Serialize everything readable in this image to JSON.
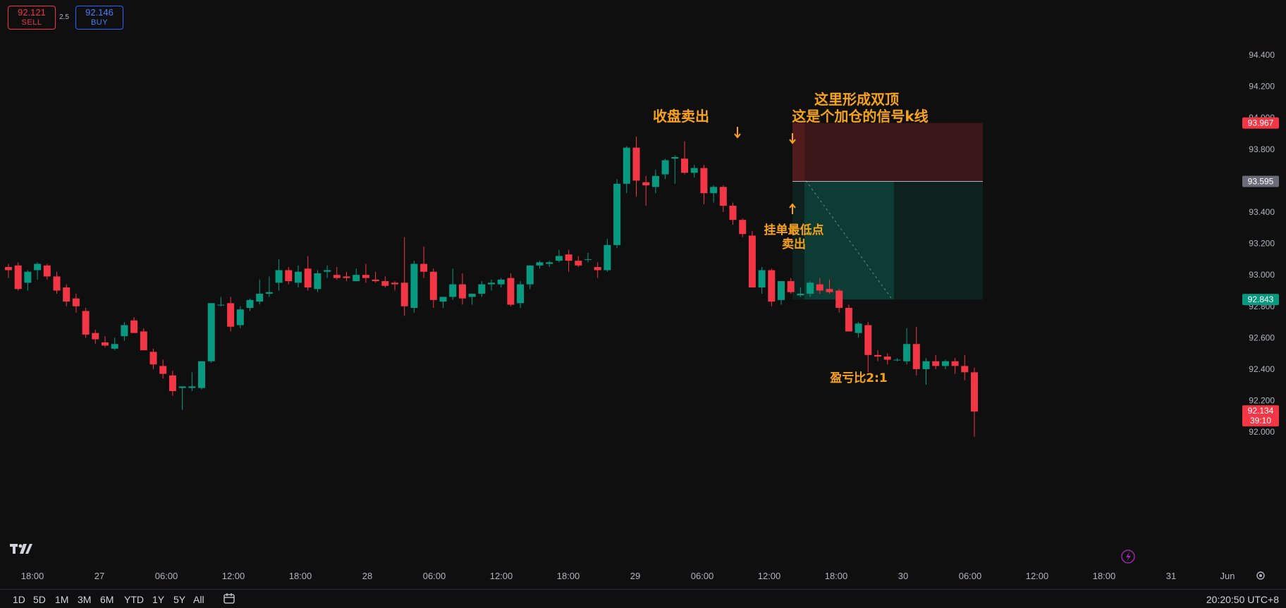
{
  "trade": {
    "sell_price": "92.121",
    "sell_label": "SELL",
    "spread": "2.5",
    "buy_price": "92.146",
    "buy_label": "BUY"
  },
  "annotations": {
    "close_sell": "收盘卖出",
    "double_top_line1": "这里形成双顶",
    "double_top_line2": "这是个加仓的信号k线",
    "pending_order_line1": "挂单最低点",
    "pending_order_line2": "卖出",
    "risk_reward": "盈亏比2:1"
  },
  "price_labels": {
    "stop": "93.967",
    "entry": "93.595",
    "target": "92.843",
    "last_price": "92.134",
    "countdown": "39:10"
  },
  "ranges": [
    "1D",
    "5D",
    "1M",
    "3M",
    "6M",
    "YTD",
    "1Y",
    "5Y",
    "All"
  ],
  "clock": "20:20:50 UTC+8",
  "colors": {
    "up": "#089981",
    "down": "#f23645",
    "annotation": "#f7a21b",
    "background": "#0f0f0f"
  },
  "chart_data": {
    "type": "candlestick",
    "ylim": [
      91.7,
      94.75
    ],
    "yticks": [
      "94.400",
      "94.200",
      "94.000",
      "93.800",
      "93.600",
      "93.400",
      "93.200",
      "93.000",
      "92.800",
      "92.600",
      "92.400",
      "92.200",
      "92.000"
    ],
    "xticks": [
      "18:00",
      "27",
      "06:00",
      "12:00",
      "18:00",
      "28",
      "06:00",
      "12:00",
      "18:00",
      "29",
      "06:00",
      "12:00",
      "18:00",
      "30",
      "06:00",
      "12:00",
      "18:00",
      "31",
      "Jun"
    ],
    "candles": [
      [
        93.05,
        93.07,
        92.98,
        93.03
      ],
      [
        93.06,
        93.08,
        92.9,
        92.91
      ],
      [
        92.95,
        93.03,
        92.9,
        93.02
      ],
      [
        93.03,
        93.08,
        92.97,
        93.07
      ],
      [
        93.06,
        93.07,
        92.97,
        92.99
      ],
      [
        92.99,
        93.02,
        92.88,
        92.9
      ],
      [
        92.92,
        92.94,
        92.8,
        92.83
      ],
      [
        92.85,
        92.88,
        92.76,
        92.8
      ],
      [
        92.77,
        92.79,
        92.6,
        92.62
      ],
      [
        92.63,
        92.65,
        92.56,
        92.59
      ],
      [
        92.57,
        92.61,
        92.54,
        92.55
      ],
      [
        92.53,
        92.6,
        92.52,
        92.56
      ],
      [
        92.61,
        92.7,
        92.58,
        92.68
      ],
      [
        92.71,
        92.73,
        92.63,
        92.63
      ],
      [
        92.64,
        92.66,
        92.52,
        92.52
      ],
      [
        92.51,
        92.53,
        92.4,
        92.43
      ],
      [
        92.42,
        92.46,
        92.34,
        92.37
      ],
      [
        92.36,
        92.39,
        92.23,
        92.26
      ],
      [
        92.28,
        92.29,
        92.14,
        92.29
      ],
      [
        92.28,
        92.38,
        92.26,
        92.29
      ],
      [
        92.28,
        92.44,
        92.27,
        92.45
      ],
      [
        92.45,
        92.82,
        92.44,
        92.82
      ],
      [
        92.81,
        92.86,
        92.8,
        92.81
      ],
      [
        92.82,
        92.86,
        92.64,
        92.67
      ],
      [
        92.68,
        92.8,
        92.66,
        92.78
      ],
      [
        92.79,
        92.85,
        92.77,
        92.84
      ],
      [
        92.83,
        92.97,
        92.81,
        92.88
      ],
      [
        92.88,
        92.99,
        92.86,
        92.89
      ],
      [
        92.95,
        93.1,
        92.9,
        93.03
      ],
      [
        93.03,
        93.05,
        92.94,
        92.96
      ],
      [
        92.95,
        93.06,
        92.92,
        93.02
      ],
      [
        93.04,
        93.12,
        92.9,
        92.92
      ],
      [
        92.91,
        93.03,
        92.89,
        93.01
      ],
      [
        93.02,
        93.06,
        92.98,
        93.03
      ],
      [
        93.0,
        93.05,
        92.97,
        92.98
      ],
      [
        92.99,
        93.02,
        92.96,
        92.98
      ],
      [
        92.96,
        93.04,
        92.96,
        93.0
      ],
      [
        93.0,
        93.07,
        92.95,
        92.98
      ],
      [
        92.97,
        93.02,
        92.95,
        92.96
      ],
      [
        92.96,
        92.99,
        92.92,
        92.93
      ],
      [
        92.95,
        92.96,
        92.9,
        92.94
      ],
      [
        92.95,
        93.24,
        92.74,
        92.8
      ],
      [
        92.79,
        93.09,
        92.76,
        93.07
      ],
      [
        93.07,
        93.18,
        92.98,
        93.02
      ],
      [
        93.02,
        93.04,
        92.79,
        92.84
      ],
      [
        92.83,
        92.85,
        92.79,
        92.86
      ],
      [
        92.86,
        93.04,
        92.84,
        92.94
      ],
      [
        92.94,
        93.01,
        92.81,
        92.85
      ],
      [
        92.86,
        92.88,
        92.81,
        92.88
      ],
      [
        92.88,
        92.96,
        92.86,
        92.94
      ],
      [
        92.94,
        92.97,
        92.9,
        92.95
      ],
      [
        92.94,
        92.98,
        92.92,
        92.97
      ],
      [
        92.98,
        93.01,
        92.8,
        92.81
      ],
      [
        92.82,
        92.96,
        92.79,
        92.94
      ],
      [
        92.94,
        93.06,
        92.91,
        93.06
      ],
      [
        93.06,
        93.09,
        93.04,
        93.08
      ],
      [
        93.07,
        93.09,
        93.05,
        93.08
      ],
      [
        93.09,
        93.16,
        93.08,
        93.12
      ],
      [
        93.13,
        93.16,
        93.02,
        93.09
      ],
      [
        93.09,
        93.12,
        93.05,
        93.06
      ],
      [
        93.1,
        93.14,
        93.08,
        93.1
      ],
      [
        93.05,
        93.08,
        92.98,
        93.03
      ],
      [
        93.03,
        93.23,
        93.02,
        93.19
      ],
      [
        93.19,
        93.61,
        93.17,
        93.58
      ],
      [
        93.58,
        93.82,
        93.52,
        93.81
      ],
      [
        93.81,
        93.88,
        93.5,
        93.6
      ],
      [
        93.59,
        93.63,
        93.44,
        93.57
      ],
      [
        93.56,
        93.67,
        93.52,
        93.63
      ],
      [
        93.64,
        93.74,
        93.61,
        93.73
      ],
      [
        93.74,
        93.76,
        93.58,
        93.75
      ],
      [
        93.74,
        93.85,
        93.64,
        93.65
      ],
      [
        93.65,
        93.7,
        93.62,
        93.68
      ],
      [
        93.68,
        93.7,
        93.45,
        93.52
      ],
      [
        93.52,
        93.57,
        93.46,
        93.56
      ],
      [
        93.56,
        93.57,
        93.4,
        93.44
      ],
      [
        93.44,
        93.46,
        93.32,
        93.35
      ],
      [
        93.35,
        93.36,
        93.24,
        93.26
      ],
      [
        93.25,
        93.28,
        92.92,
        92.92
      ],
      [
        92.92,
        93.05,
        92.88,
        93.03
      ],
      [
        93.03,
        93.04,
        92.8,
        92.83
      ],
      [
        92.84,
        92.96,
        92.81,
        92.96
      ],
      [
        92.96,
        92.98,
        92.88,
        92.89
      ],
      [
        92.87,
        92.92,
        92.86,
        92.88
      ],
      [
        92.88,
        92.96,
        92.86,
        92.95
      ],
      [
        92.94,
        92.98,
        92.88,
        92.9
      ],
      [
        92.91,
        92.97,
        92.88,
        92.89
      ],
      [
        92.9,
        92.91,
        92.76,
        92.79
      ],
      [
        92.79,
        92.81,
        92.64,
        92.64
      ],
      [
        92.63,
        92.7,
        92.6,
        92.69
      ],
      [
        92.68,
        92.7,
        92.38,
        92.49
      ],
      [
        92.49,
        92.52,
        92.45,
        92.48
      ],
      [
        92.48,
        92.5,
        92.43,
        92.46
      ],
      [
        92.46,
        92.47,
        92.45,
        92.46
      ],
      [
        92.45,
        92.66,
        92.43,
        92.56
      ],
      [
        92.56,
        92.67,
        92.36,
        92.4
      ],
      [
        92.4,
        92.47,
        92.3,
        92.45
      ],
      [
        92.45,
        92.49,
        92.4,
        92.42
      ],
      [
        92.42,
        92.46,
        92.4,
        92.45
      ],
      [
        92.45,
        92.47,
        92.37,
        92.42
      ],
      [
        92.42,
        92.49,
        92.33,
        92.38
      ],
      [
        92.38,
        92.41,
        91.97,
        92.13
      ]
    ],
    "position": {
      "type": "short",
      "stop": 93.967,
      "entry": 93.595,
      "target": 92.843
    }
  }
}
